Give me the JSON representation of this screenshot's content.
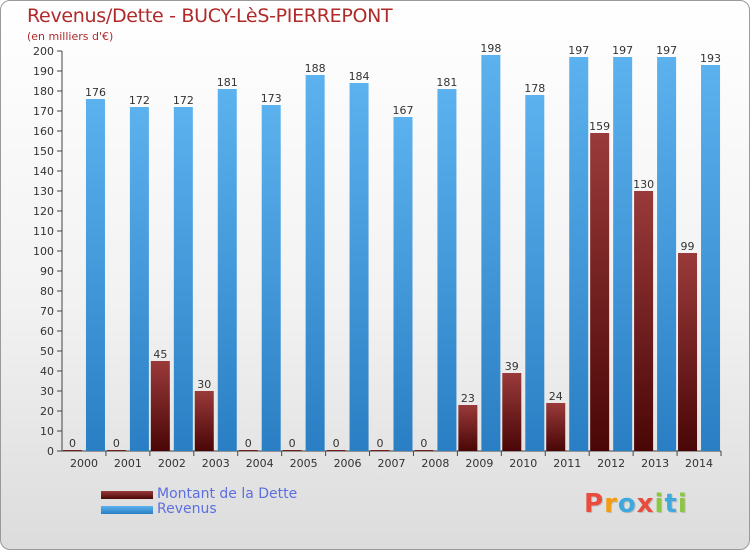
{
  "header": {
    "title": "Revenus/Dette - BUCY-LèS-PIERREPONT",
    "subtitle": "(en milliers d'€)"
  },
  "chart_data": {
    "type": "bar",
    "categories": [
      "2000",
      "2001",
      "2002",
      "2003",
      "2004",
      "2005",
      "2006",
      "2007",
      "2008",
      "2009",
      "2010",
      "2011",
      "2012",
      "2013",
      "2014"
    ],
    "series": [
      {
        "name": "Montant de la Dette",
        "color": "#6e1a1a",
        "values": [
          0,
          0,
          45,
          30,
          0,
          0,
          0,
          0,
          0,
          23,
          39,
          24,
          159,
          130,
          99
        ]
      },
      {
        "name": "Revenus",
        "color": "#4aa3e6",
        "values": [
          176,
          172,
          172,
          181,
          173,
          188,
          184,
          167,
          181,
          198,
          178,
          197,
          197,
          197,
          193
        ]
      }
    ],
    "ylim": [
      0,
      200
    ],
    "ytick_step": 10,
    "ytick_labels": [
      "0",
      "10",
      "20",
      "30",
      "40",
      "50",
      "60",
      "70",
      "80",
      "90",
      "100",
      "110",
      "120",
      "130",
      "140",
      "150",
      "160",
      "170",
      "180",
      "190",
      "200"
    ],
    "grid": false,
    "legend_position": "bottom-left"
  },
  "legend": {
    "debt_label": "Montant de la Dette",
    "revenue_label": "Revenus",
    "debt_color": "#6e1a1a",
    "revenue_color": "#4aa3e6"
  },
  "logo": {
    "letters": [
      "P",
      "r",
      "o",
      "x",
      "i",
      "t",
      "i"
    ],
    "colors": [
      "#e84c3d",
      "#f39c12",
      "#3fa9dd",
      "#e84c3d",
      "#8cc63f",
      "#3fa9dd",
      "#8cc63f"
    ]
  }
}
